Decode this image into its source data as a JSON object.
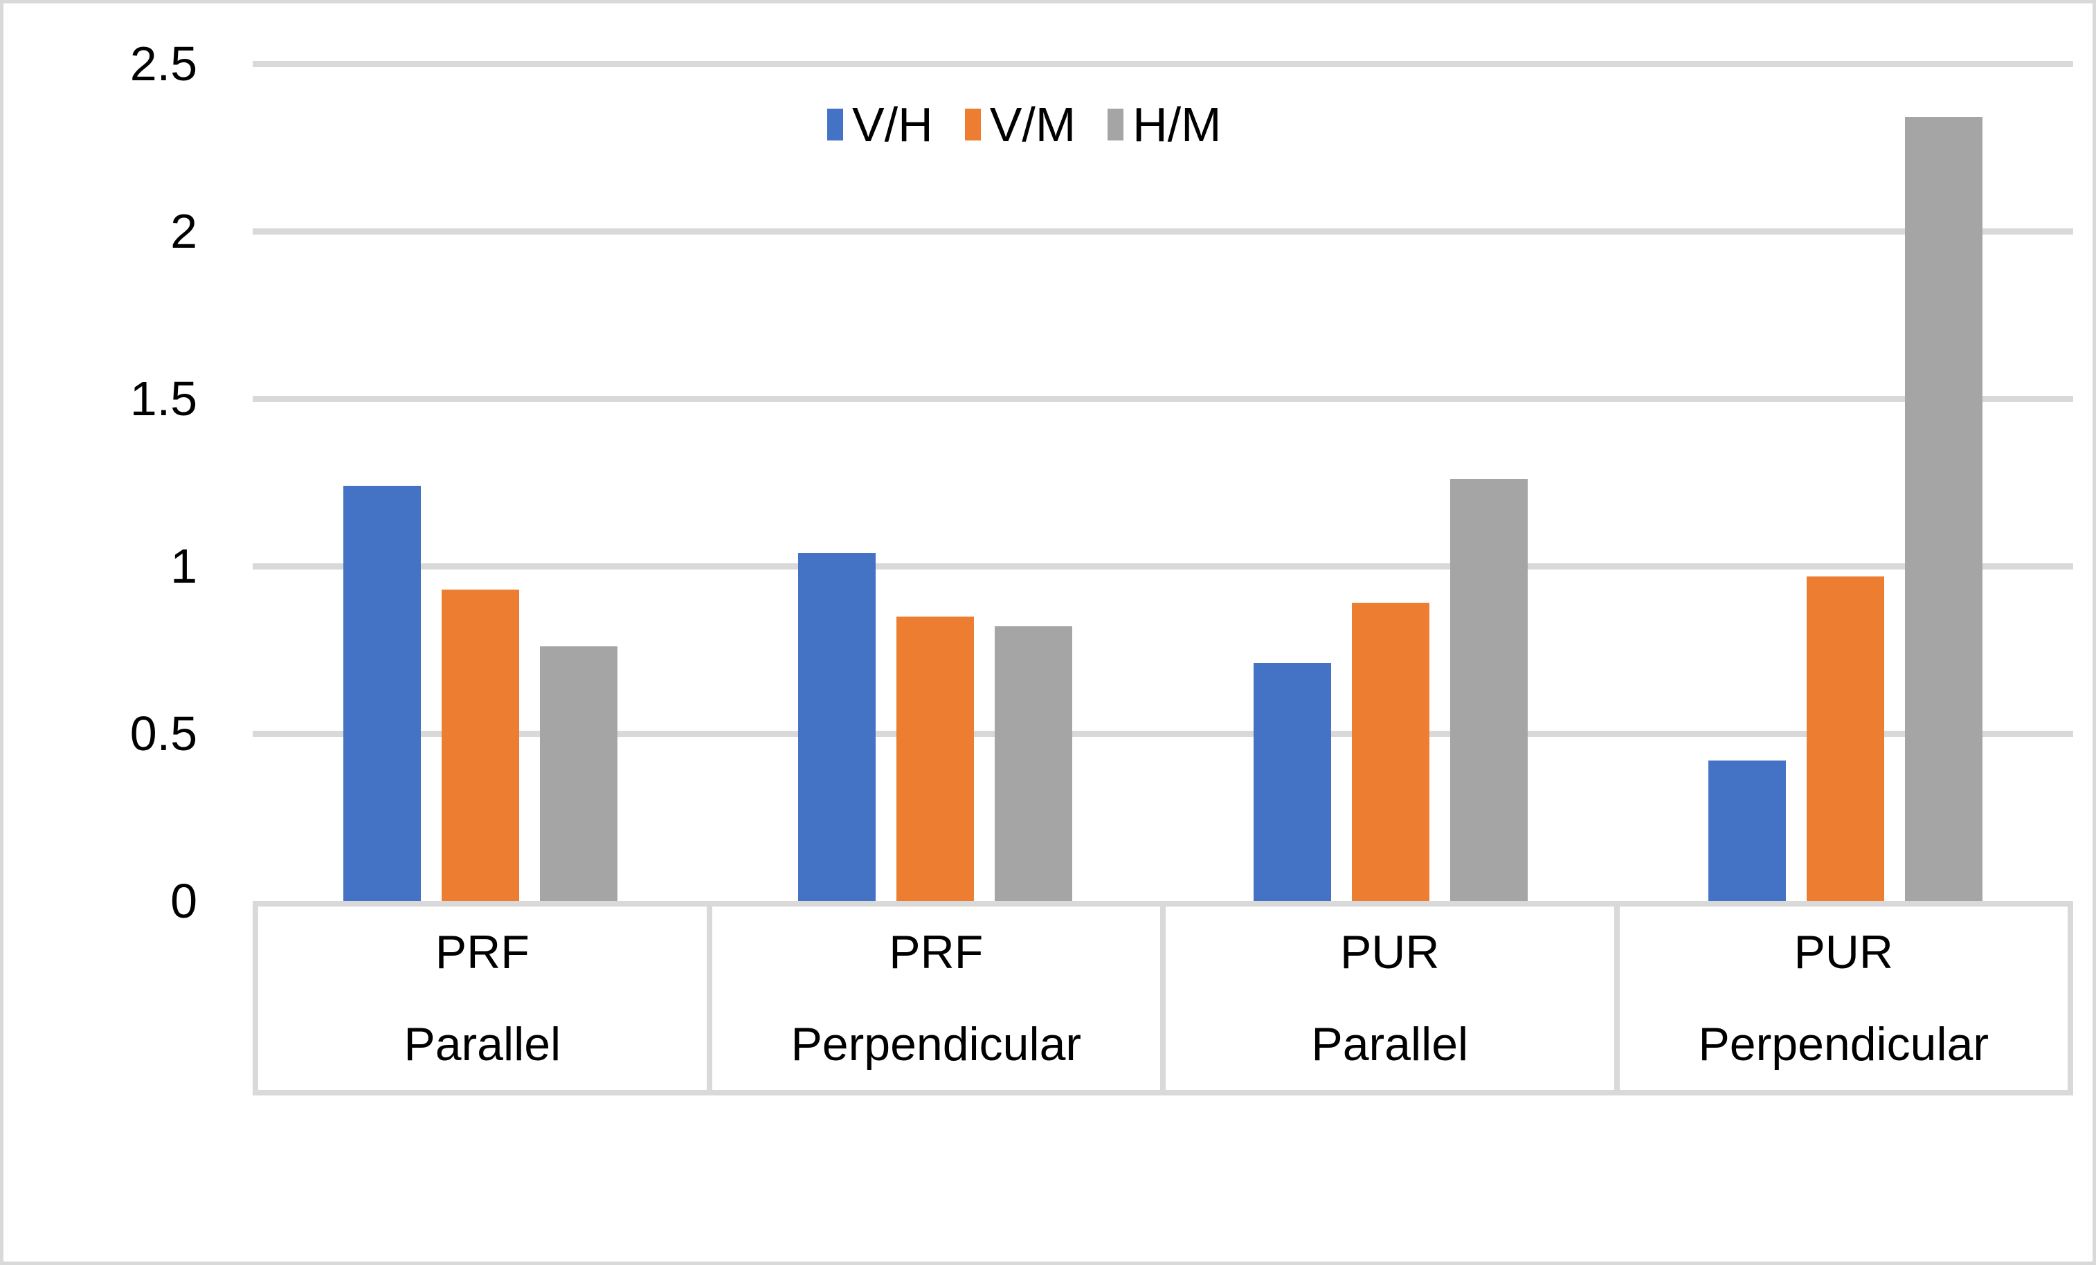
{
  "style": {
    "background": "#FFFFFF",
    "figure_border_color": "#D9D9D9",
    "gridline_color": "#D9D9D9",
    "axis_table_border_color": "#D9D9D9",
    "text_color": "#000000"
  },
  "chart_data": {
    "type": "bar",
    "title": "",
    "xlabel": "",
    "ylabel": "",
    "ylim": [
      0,
      2.5
    ],
    "ytick_labels": [
      "2.5",
      "2",
      "1.5",
      "1",
      "0.5",
      "0"
    ],
    "ytick_values": [
      2.5,
      2,
      1.5,
      1,
      0.5,
      0
    ],
    "grid": true,
    "legend_position": "top-center",
    "categories": [
      {
        "material": "PRF",
        "orientation": "Parallel"
      },
      {
        "material": "PRF",
        "orientation": "Perpendicular"
      },
      {
        "material": "PUR",
        "orientation": "Parallel"
      },
      {
        "material": "PUR",
        "orientation": "Perpendicular"
      }
    ],
    "series": [
      {
        "name": "V/H",
        "color": "#4472C4",
        "values": [
          1.24,
          1.04,
          0.71,
          0.42
        ]
      },
      {
        "name": "V/M",
        "color": "#ED7D31",
        "values": [
          0.93,
          0.85,
          0.89,
          0.97
        ]
      },
      {
        "name": "H/M",
        "color": "#A5A5A5",
        "values": [
          0.76,
          0.82,
          1.26,
          2.34
        ]
      }
    ]
  }
}
